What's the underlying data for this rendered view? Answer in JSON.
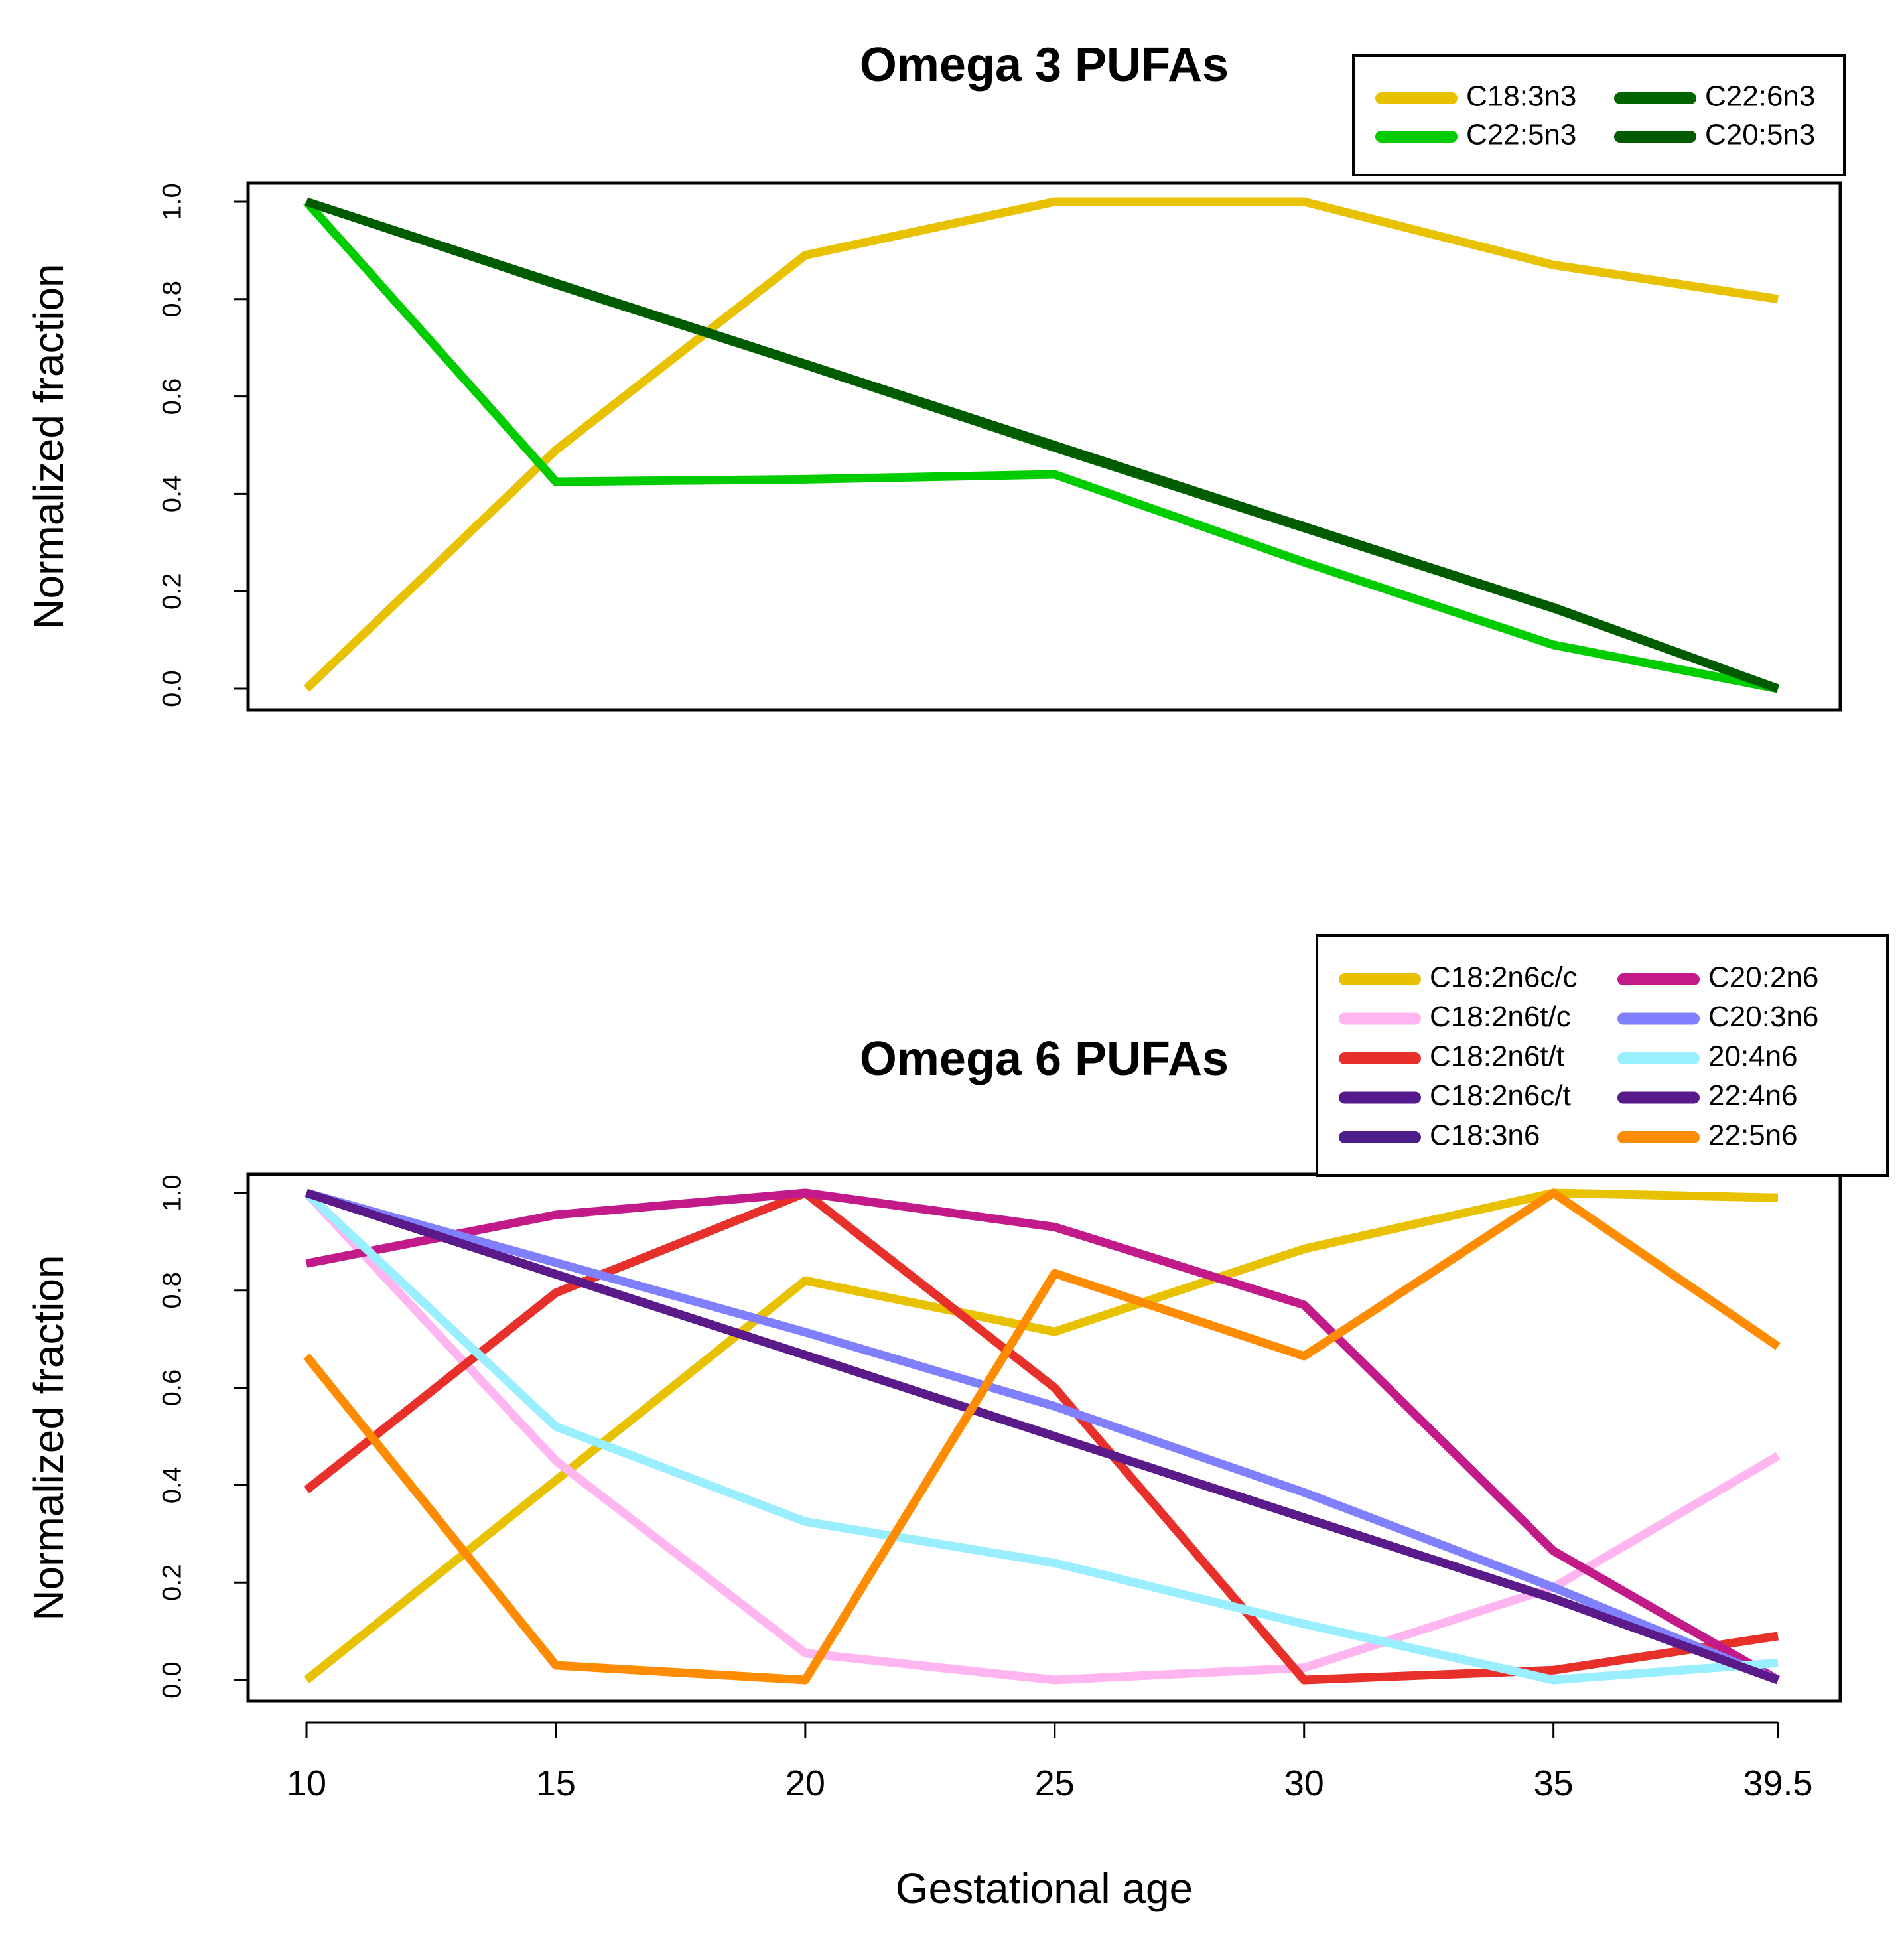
{
  "chart_data": [
    {
      "type": "line",
      "title": "Omega 3 PUFAs",
      "xlabel": "",
      "ylabel": "Normalized fraction",
      "x": [
        10,
        15,
        20,
        25,
        30,
        35,
        39.5
      ],
      "ylim": [
        0,
        1
      ],
      "yticks": [
        "0.0",
        "0.2",
        "0.4",
        "0.6",
        "0.8",
        "1.0"
      ],
      "legend_position": "top-right",
      "series": [
        {
          "name": "C18:3n3",
          "color": "#E8C200",
          "values": [
            0.0,
            0.49,
            0.89,
            1.0,
            1.0,
            0.87,
            0.8
          ]
        },
        {
          "name": "C22:5n3",
          "color": "#00CC00",
          "values": [
            1.0,
            0.425,
            0.43,
            0.44,
            0.26,
            0.09,
            0.0
          ]
        },
        {
          "name": "C22:6n3",
          "color": "#006400",
          "values": [
            1.0,
            0.83,
            0.665,
            0.495,
            0.33,
            0.165,
            0.0
          ]
        },
        {
          "name": "C20:5n3",
          "color": "#005A00",
          "values": [
            1.0,
            0.833,
            0.667,
            0.5,
            0.333,
            0.167,
            0.0
          ]
        }
      ]
    },
    {
      "type": "line",
      "title": "Omega 6 PUFAs",
      "xlabel": "Gestational age",
      "ylabel": "Normalized fraction",
      "x": [
        10,
        15,
        20,
        25,
        30,
        35,
        39.5
      ],
      "xticks": [
        "10",
        "15",
        "20",
        "25",
        "30",
        "35",
        "39.5"
      ],
      "ylim": [
        0,
        1
      ],
      "yticks": [
        "0.0",
        "0.2",
        "0.4",
        "0.6",
        "0.8",
        "1.0"
      ],
      "legend_position": "top-right",
      "series": [
        {
          "name": "C18:2n6c/c",
          "color": "#E8C200",
          "values": [
            0.0,
            0.41,
            0.82,
            0.715,
            0.885,
            1.0,
            0.99
          ]
        },
        {
          "name": "C18:2n6t/c",
          "color": "#FFB6F0",
          "values": [
            1.0,
            0.45,
            0.055,
            0.0,
            0.025,
            0.19,
            0.46
          ]
        },
        {
          "name": "C18:2n6t/t",
          "color": "#E8302A",
          "values": [
            0.39,
            0.795,
            1.0,
            0.6,
            0.0,
            0.02,
            0.09
          ]
        },
        {
          "name": "C18:2n6c/t",
          "color": "#551A8B",
          "values": [
            1.0,
            0.833,
            0.667,
            0.5,
            0.333,
            0.167,
            0.0
          ]
        },
        {
          "name": "C18:3n6",
          "color": "#4B1E8A",
          "values": [
            1.0,
            0.833,
            0.667,
            0.5,
            0.333,
            0.167,
            0.0
          ]
        },
        {
          "name": "C20:2n6",
          "color": "#C21A88",
          "values": [
            0.855,
            0.955,
            1.0,
            0.93,
            0.77,
            0.265,
            0.0
          ]
        },
        {
          "name": "C20:3n6",
          "color": "#8080FF",
          "values": [
            1.0,
            0.857,
            0.714,
            0.562,
            0.385,
            0.19,
            0.0
          ]
        },
        {
          "name": "20:4n6",
          "color": "#99EEFF",
          "values": [
            1.0,
            0.52,
            0.325,
            0.24,
            0.115,
            0.0,
            0.035
          ]
        },
        {
          "name": "22:4n6",
          "color": "#5B1A8A",
          "values": [
            1.0,
            0.833,
            0.667,
            0.5,
            0.333,
            0.167,
            0.0
          ]
        },
        {
          "name": "22:5n6",
          "color": "#FF8C00",
          "values": [
            0.665,
            0.03,
            0.0,
            0.835,
            0.665,
            1.0,
            0.685
          ]
        }
      ]
    }
  ]
}
